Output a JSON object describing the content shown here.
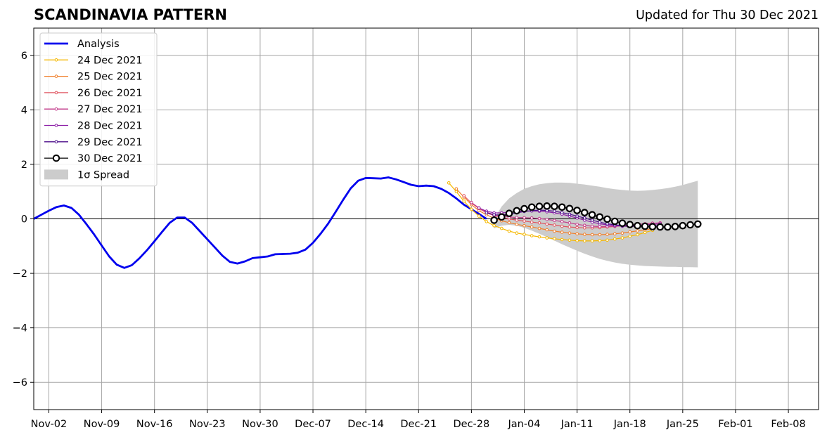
{
  "chart_data": {
    "type": "line",
    "title": "SCANDINAVIA PATTERN",
    "subtitle": "Updated for Thu 30 Dec 2021",
    "xlabel": "",
    "ylabel": "",
    "x_tick_labels": [
      "Nov-02",
      "Nov-09",
      "Nov-16",
      "Nov-23",
      "Nov-30",
      "Dec-07",
      "Dec-14",
      "Dec-21",
      "Dec-28",
      "Jan-04",
      "Jan-11",
      "Jan-18",
      "Jan-25",
      "Feb-01",
      "Feb-08"
    ],
    "x_tick_dates": [
      "2021-11-02",
      "2021-11-09",
      "2021-11-16",
      "2021-11-23",
      "2021-11-30",
      "2021-12-07",
      "2021-12-14",
      "2021-12-21",
      "2021-12-28",
      "2022-01-04",
      "2022-01-11",
      "2022-01-18",
      "2022-01-25",
      "2022-02-01",
      "2022-02-08"
    ],
    "xlim": [
      "2021-10-31",
      "2022-02-12"
    ],
    "ylim": [
      -7,
      7
    ],
    "y_ticks": [
      -6,
      -4,
      -2,
      0,
      2,
      4,
      6
    ],
    "y_tick_labels": [
      "−6",
      "−4",
      "−2",
      "0",
      "2",
      "4",
      "6"
    ],
    "grid": true,
    "legend_position": "top-left",
    "analysis": {
      "name": "Analysis",
      "color": "#0000ee",
      "x": [
        "2021-10-31",
        "2021-11-01",
        "2021-11-02",
        "2021-11-03",
        "2021-11-04",
        "2021-11-05",
        "2021-11-06",
        "2021-11-07",
        "2021-11-08",
        "2021-11-09",
        "2021-11-10",
        "2021-11-11",
        "2021-11-12",
        "2021-11-13",
        "2021-11-14",
        "2021-11-15",
        "2021-11-16",
        "2021-11-17",
        "2021-11-18",
        "2021-11-19",
        "2021-11-20",
        "2021-11-21",
        "2021-11-22",
        "2021-11-23",
        "2021-11-24",
        "2021-11-25",
        "2021-11-26",
        "2021-11-27",
        "2021-11-28",
        "2021-11-29",
        "2021-11-30",
        "2021-12-01",
        "2021-12-02",
        "2021-12-03",
        "2021-12-04",
        "2021-12-05",
        "2021-12-06",
        "2021-12-07",
        "2021-12-08",
        "2021-12-09",
        "2021-12-10",
        "2021-12-11",
        "2021-12-12",
        "2021-12-13",
        "2021-12-14",
        "2021-12-15",
        "2021-12-16",
        "2021-12-17",
        "2021-12-18",
        "2021-12-19",
        "2021-12-20",
        "2021-12-21",
        "2021-12-22",
        "2021-12-23",
        "2021-12-24",
        "2021-12-25",
        "2021-12-26",
        "2021-12-27",
        "2021-12-28",
        "2021-12-29",
        "2021-12-30"
      ],
      "y": [
        0.0,
        0.15,
        0.3,
        0.43,
        0.49,
        0.4,
        0.15,
        -0.2,
        -0.57,
        -0.98,
        -1.38,
        -1.68,
        -1.8,
        -1.7,
        -1.45,
        -1.15,
        -0.82,
        -0.48,
        -0.15,
        0.05,
        0.05,
        -0.15,
        -0.45,
        -0.75,
        -1.05,
        -1.35,
        -1.58,
        -1.64,
        -1.56,
        -1.44,
        -1.41,
        -1.38,
        -1.3,
        -1.29,
        -1.28,
        -1.24,
        -1.13,
        -0.88,
        -0.55,
        -0.18,
        0.25,
        0.7,
        1.12,
        1.4,
        1.5,
        1.49,
        1.48,
        1.52,
        1.45,
        1.35,
        1.25,
        1.2,
        1.22,
        1.2,
        1.1,
        0.95,
        0.75,
        0.52,
        0.35,
        0.18,
        0.0
      ]
    },
    "forecast_series": [
      {
        "name": "24 Dec 2021",
        "color": "#f5b800",
        "start": "2021-12-25",
        "y": [
          1.32,
          1.0,
          0.65,
          0.35,
          0.1,
          -0.1,
          -0.25,
          -0.35,
          -0.45,
          -0.52,
          -0.57,
          -0.62,
          -0.66,
          -0.7,
          -0.73,
          -0.76,
          -0.78,
          -0.8,
          -0.81,
          -0.81,
          -0.8,
          -0.78,
          -0.74,
          -0.7,
          -0.64,
          -0.58,
          -0.5,
          -0.42
        ]
      },
      {
        "name": "25 Dec 2021",
        "color": "#f07f2a",
        "start": "2021-12-26",
        "y": [
          1.1,
          0.8,
          0.52,
          0.3,
          0.15,
          0.02,
          -0.07,
          -0.14,
          -0.2,
          -0.25,
          -0.3,
          -0.35,
          -0.4,
          -0.45,
          -0.49,
          -0.52,
          -0.55,
          -0.57,
          -0.58,
          -0.58,
          -0.57,
          -0.55,
          -0.52,
          -0.48,
          -0.44,
          -0.4,
          -0.36
        ]
      },
      {
        "name": "26 Dec 2021",
        "color": "#e05561",
        "start": "2021-12-27",
        "y": [
          0.85,
          0.58,
          0.38,
          0.22,
          0.12,
          0.05,
          0.0,
          -0.05,
          -0.08,
          -0.12,
          -0.15,
          -0.19,
          -0.23,
          -0.27,
          -0.3,
          -0.32,
          -0.33,
          -0.33,
          -0.32,
          -0.3,
          -0.28,
          -0.25,
          -0.22,
          -0.2,
          -0.18,
          -0.16,
          -0.15
        ]
      },
      {
        "name": "27 Dec 2021",
        "color": "#c43c8c",
        "start": "2021-12-28",
        "y": [
          0.6,
          0.4,
          0.25,
          0.15,
          0.1,
          0.07,
          0.05,
          0.04,
          0.03,
          0.01,
          -0.02,
          -0.06,
          -0.1,
          -0.15,
          -0.2,
          -0.24,
          -0.27,
          -0.28,
          -0.28,
          -0.27,
          -0.25,
          -0.22,
          -0.2,
          -0.18,
          -0.16,
          -0.15
        ]
      },
      {
        "name": "28 Dec 2021",
        "color": "#8c1ea6",
        "start": "2021-12-29",
        "y": [
          0.4,
          0.28,
          0.22,
          0.22,
          0.24,
          0.27,
          0.28,
          0.29,
          0.28,
          0.26,
          0.22,
          0.17,
          0.1,
          0.03,
          -0.05,
          -0.12,
          -0.18,
          -0.22,
          -0.25,
          -0.27,
          -0.27,
          -0.25,
          -0.22,
          -0.2,
          -0.18
        ]
      },
      {
        "name": "29 Dec 2021",
        "color": "#4b0c8a",
        "start": "2021-12-30",
        "y": [
          0.22,
          0.15,
          0.14,
          0.17,
          0.22,
          0.27,
          0.3,
          0.32,
          0.31,
          0.28,
          0.23,
          0.17,
          0.1,
          0.03,
          -0.05,
          -0.12,
          -0.18,
          -0.22,
          -0.25,
          -0.27,
          -0.28,
          -0.28,
          -0.26,
          -0.24
        ]
      },
      {
        "name": "30 Dec 2021",
        "color": "#000000",
        "start": "2021-12-31",
        "y": [
          -0.05,
          0.07,
          0.2,
          0.3,
          0.37,
          0.43,
          0.46,
          0.47,
          0.46,
          0.43,
          0.38,
          0.31,
          0.23,
          0.15,
          0.07,
          -0.01,
          -0.09,
          -0.16,
          -0.21,
          -0.25,
          -0.27,
          -0.29,
          -0.3,
          -0.3,
          -0.28,
          -0.25,
          -0.22,
          -0.19
        ]
      }
    ],
    "spread": {
      "name": "1σ Spread",
      "color": "#cccccc",
      "start": "2021-12-31",
      "upper": [
        0.0,
        0.45,
        0.75,
        0.95,
        1.1,
        1.2,
        1.27,
        1.31,
        1.33,
        1.33,
        1.32,
        1.29,
        1.26,
        1.22,
        1.18,
        1.13,
        1.09,
        1.06,
        1.04,
        1.03,
        1.04,
        1.06,
        1.09,
        1.13,
        1.18,
        1.24,
        1.32,
        1.4
      ],
      "lower": [
        -0.35,
        -0.25,
        -0.22,
        -0.25,
        -0.33,
        -0.43,
        -0.55,
        -0.67,
        -0.8,
        -0.93,
        -1.05,
        -1.17,
        -1.28,
        -1.38,
        -1.47,
        -1.54,
        -1.6,
        -1.65,
        -1.68,
        -1.71,
        -1.73,
        -1.74,
        -1.75,
        -1.76,
        -1.76,
        -1.77,
        -1.77,
        -1.78
      ]
    }
  }
}
